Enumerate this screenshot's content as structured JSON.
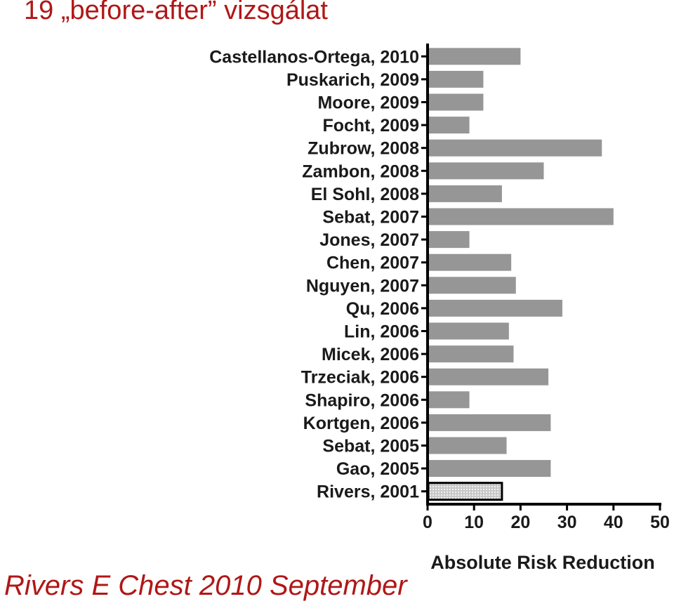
{
  "slide": {
    "title": "19 „before-after” vizsgálat",
    "citation": "Rivers E Chest 2010 September"
  },
  "colors": {
    "title": "#b01717",
    "bar": "#969696",
    "highlight_bar": "#c8c8c8",
    "axis": "#000000"
  },
  "chart_data": {
    "type": "bar",
    "orientation": "horizontal",
    "categories": [
      "Castellanos-Ortega, 2010",
      "Puskarich, 2009",
      "Moore, 2009",
      "Focht, 2009",
      "Zubrow, 2008",
      "Zambon, 2008",
      "El Sohl, 2008",
      "Sebat, 2007",
      "Jones, 2007",
      "Chen, 2007",
      "Nguyen, 2007",
      "Qu, 2006",
      "Lin, 2006",
      "Micek, 2006",
      "Trzeciak, 2006",
      "Shapiro, 2006",
      "Kortgen, 2006",
      "Sebat, 2005",
      "Gao, 2005",
      "Rivers, 2001"
    ],
    "values": [
      20,
      12,
      12,
      9,
      37.5,
      25,
      16,
      40,
      9,
      18,
      19,
      29,
      17.5,
      18.5,
      26,
      9,
      26.5,
      17,
      26.5,
      16
    ],
    "highlighted_category": "Rivers, 2001",
    "xlabel": "Absolute Risk Reduction",
    "ylabel": "",
    "xlim": [
      0,
      50
    ],
    "xticks": [
      "0",
      "10",
      "20",
      "30",
      "40",
      "50"
    ],
    "grid": false,
    "legend": "none"
  }
}
